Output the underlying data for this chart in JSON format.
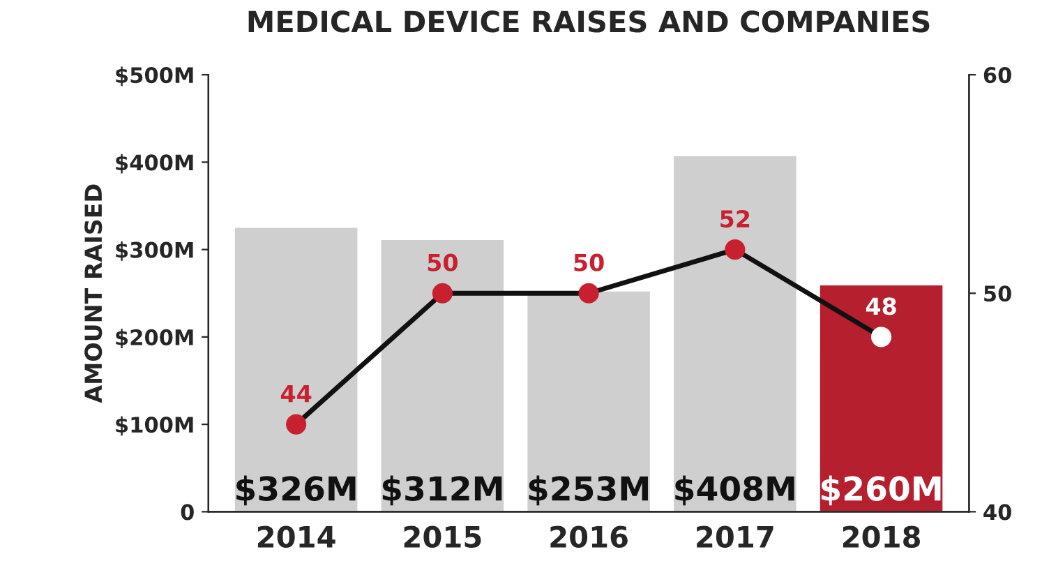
{
  "chart_data": {
    "type": "bar",
    "title": "MEDICAL DEVICE RAISES AND COMPANIES",
    "ylabel": "AMOUNT RAISED",
    "categories": [
      "2014",
      "2015",
      "2016",
      "2017",
      "2018"
    ],
    "series": [
      {
        "colors": [
          "#cfcfd0",
          "#cfcfd0",
          "#cfcfd0",
          "#cfcfd0",
          "#b51f2e"
        ],
        "values": [
          326,
          312,
          253,
          408,
          260
        ],
        "value_labels": [
          "$326M",
          "$312M",
          "$253M",
          "$408M",
          "$260M"
        ]
      },
      {
        "type": "line",
        "axis": "y2",
        "color": "#111111",
        "colors": [
          "#c8202f",
          "#c8202f",
          "#c8202f",
          "#c8202f",
          "#ffffff"
        ],
        "values": [
          44,
          50,
          50,
          52,
          48
        ],
        "data_labels": true
      }
    ],
    "ylim": [
      0,
      500
    ],
    "yticks": [
      0,
      {
        "value": 100,
        "label": "$100M"
      },
      {
        "value": 200,
        "label": "$200M"
      },
      {
        "value": 300,
        "label": "$300M"
      },
      {
        "value": 400,
        "label": "$400M"
      },
      {
        "value": 500,
        "label": "$500M"
      }
    ],
    "y2lim": [
      40,
      60
    ],
    "y2ticks": [
      40,
      50,
      60
    ],
    "marker": "circle",
    "grid": false,
    "legend": false
  }
}
